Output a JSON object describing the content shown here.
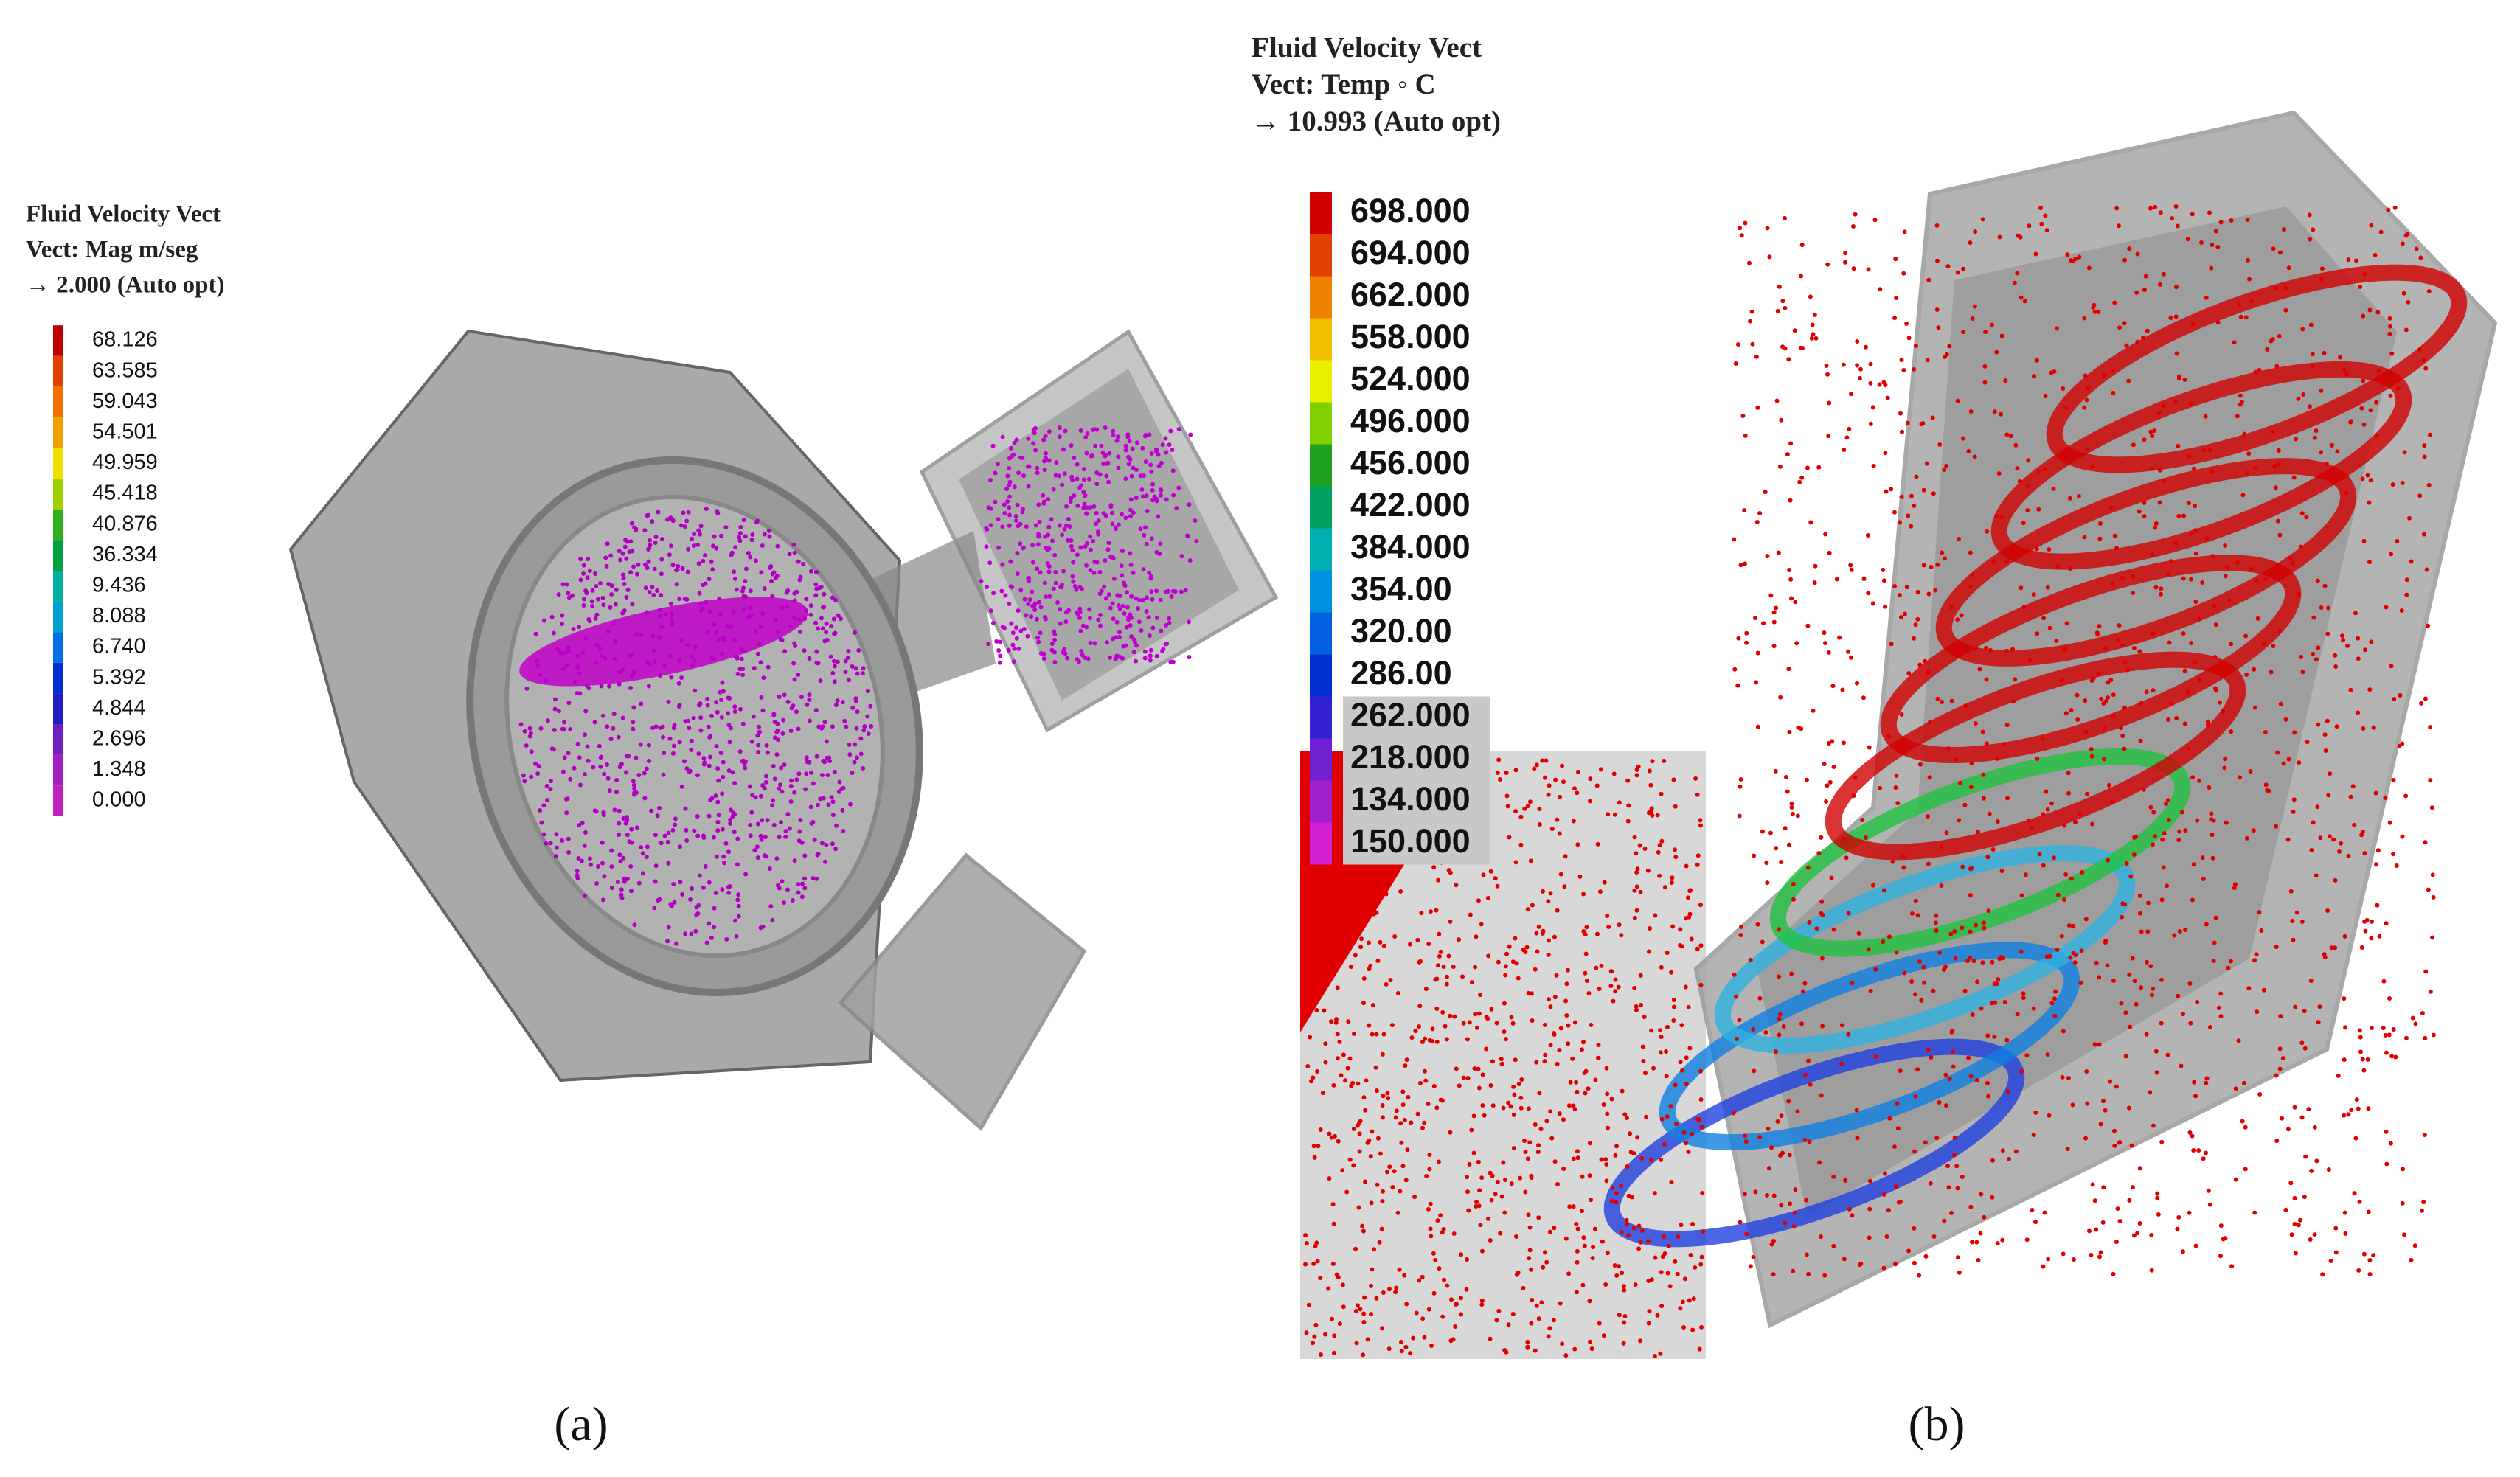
{
  "panel_a": {
    "legend_title": [
      "Fluid Velocity Vect",
      "Vect: Mag m/seg",
      "→ 2.000 (Auto opt)"
    ],
    "legend": [
      {
        "label": "68.126",
        "color": "#c00000"
      },
      {
        "label": "63.585",
        "color": "#e04000"
      },
      {
        "label": "59.043",
        "color": "#f07000"
      },
      {
        "label": "54.501",
        "color": "#f0a000"
      },
      {
        "label": "49.959",
        "color": "#f0e000"
      },
      {
        "label": "45.418",
        "color": "#a0d000"
      },
      {
        "label": "40.876",
        "color": "#30b020"
      },
      {
        "label": "36.334",
        "color": "#00a040"
      },
      {
        "label": "9.436",
        "color": "#00b0a0"
      },
      {
        "label": "8.088",
        "color": "#00a0d0"
      },
      {
        "label": "6.740",
        "color": "#0070e0"
      },
      {
        "label": "5.392",
        "color": "#0030d0"
      },
      {
        "label": "4.844",
        "color": "#2020c0"
      },
      {
        "label": "2.696",
        "color": "#7020c0"
      },
      {
        "label": "1.348",
        "color": "#a020c0"
      },
      {
        "label": "0.000",
        "color": "#c020c0"
      }
    ],
    "caption": "(a)"
  },
  "panel_b": {
    "legend_title": [
      "Fluid Velocity Vect",
      "Vect: Temp ◦ C",
      "→ 10.993 (Auto opt)"
    ],
    "legend": [
      {
        "label": "698.000",
        "color": "#d00000"
      },
      {
        "label": "694.000",
        "color": "#e04000"
      },
      {
        "label": "662.000",
        "color": "#f08000"
      },
      {
        "label": "558.000",
        "color": "#f0c000"
      },
      {
        "label": "524.000",
        "color": "#e8f000"
      },
      {
        "label": "496.000",
        "color": "#80d000"
      },
      {
        "label": "456.000",
        "color": "#20a020"
      },
      {
        "label": "422.000",
        "color": "#00a060"
      },
      {
        "label": "384.000",
        "color": "#00b0b0"
      },
      {
        "label": "354.00",
        "color": "#0090e0"
      },
      {
        "label": "320.00",
        "color": "#0060e0"
      },
      {
        "label": "286.00",
        "color": "#0030d0"
      },
      {
        "label": "262.000",
        "color": "#3020d0"
      },
      {
        "label": "218.000",
        "color": "#7020d0"
      },
      {
        "label": "134.000",
        "color": "#a020d0"
      },
      {
        "label": "150.000",
        "color": "#d020d0"
      }
    ],
    "caption": "(b)"
  }
}
